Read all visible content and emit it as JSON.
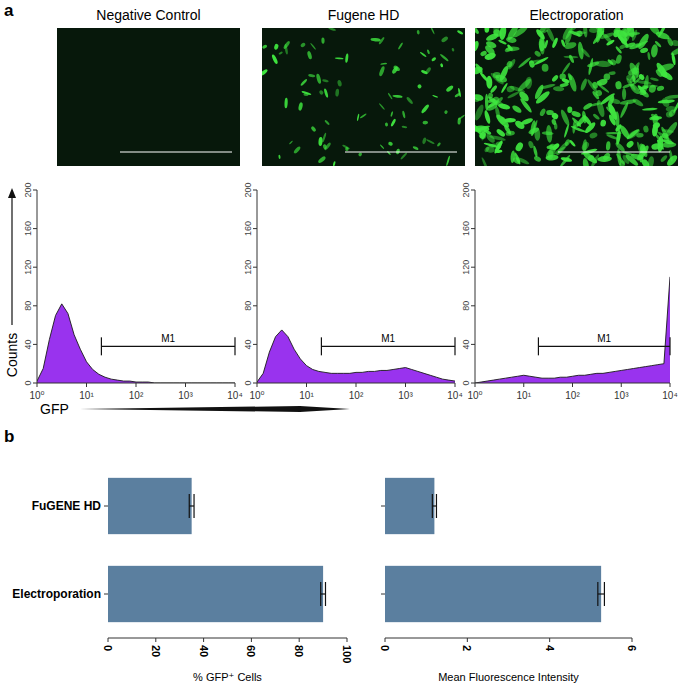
{
  "panel_labels": [
    "a",
    "b"
  ],
  "chart_data": [
    {
      "type": "area",
      "title": "Negative Control",
      "x_label": "GFP",
      "y_label": "Counts",
      "log": "x",
      "x": [
        1,
        1.334,
        1.778,
        2.371,
        3.162,
        4.217,
        5.623,
        7.499,
        10,
        13.34,
        17.78,
        23.71,
        31.62,
        42.17,
        56.23,
        74.99,
        100,
        133.4,
        177.8,
        237.1,
        316.2,
        421.7,
        562.3,
        749.9,
        1000,
        1334,
        1778,
        2371,
        3162,
        4217,
        5623,
        7499,
        10000
      ],
      "values": [
        2,
        15,
        45,
        70,
        82,
        72,
        50,
        35,
        22,
        14,
        9,
        6,
        4,
        3,
        2,
        2,
        1,
        1,
        1,
        0,
        0,
        0,
        0,
        0,
        0,
        0,
        0,
        0,
        0,
        0,
        0,
        0,
        0
      ],
      "color": "#9933ee",
      "xlim": [
        1,
        10000
      ],
      "xticks": [
        {
          "value": 1,
          "label": "10⁰"
        },
        {
          "value": 10,
          "label": "10¹"
        },
        {
          "value": 100,
          "label": "10²"
        },
        {
          "value": 1000,
          "label": "10³"
        },
        {
          "value": 10000,
          "label": "10⁴"
        }
      ],
      "ylim": [
        0,
        200
      ],
      "yticks": [
        0,
        40,
        80,
        120,
        160,
        200
      ],
      "gate": {
        "label": "M1",
        "range": [
          20,
          10000
        ],
        "level": 38
      }
    },
    {
      "type": "area",
      "title": "Fugene HD",
      "log": "x",
      "x": [
        1,
        1.334,
        1.778,
        2.371,
        3.162,
        4.217,
        5.623,
        7.499,
        10,
        13.34,
        17.78,
        23.71,
        31.62,
        42.17,
        56.23,
        74.99,
        100,
        133.4,
        177.8,
        237.1,
        316.2,
        421.7,
        562.3,
        749.9,
        1000,
        1334,
        1778,
        2371,
        3162,
        4217,
        5623,
        7499,
        10000
      ],
      "values": [
        1,
        10,
        32,
        48,
        55,
        48,
        35,
        25,
        18,
        14,
        12,
        11,
        10,
        10,
        10,
        10,
        11,
        11,
        12,
        12,
        13,
        13,
        14,
        15,
        16,
        14,
        12,
        10,
        8,
        6,
        4,
        3,
        2
      ],
      "color": "#9933ee",
      "xlim": [
        1,
        10000
      ],
      "xticks": [
        {
          "value": 1,
          "label": "10⁰"
        },
        {
          "value": 10,
          "label": "10¹"
        },
        {
          "value": 100,
          "label": "10²"
        },
        {
          "value": 1000,
          "label": "10³"
        },
        {
          "value": 10000,
          "label": "10⁴"
        }
      ],
      "ylim": [
        0,
        200
      ],
      "yticks": [
        0,
        40,
        80,
        120,
        160,
        200
      ],
      "gate": {
        "label": "M1",
        "range": [
          20,
          10000
        ],
        "level": 38
      }
    },
    {
      "type": "area",
      "title": "Electroporation",
      "log": "x",
      "x": [
        1,
        1.334,
        1.778,
        2.371,
        3.162,
        4.217,
        5.623,
        7.499,
        10,
        13.34,
        17.78,
        23.71,
        31.62,
        42.17,
        56.23,
        74.99,
        100,
        133.4,
        177.8,
        237.1,
        316.2,
        421.7,
        562.3,
        749.9,
        1000,
        1334,
        1778,
        2371,
        3162,
        4217,
        5623,
        7499,
        10000
      ],
      "values": [
        0,
        1,
        2,
        3,
        4,
        5,
        6,
        7,
        8,
        7,
        6,
        5,
        5,
        5,
        6,
        6,
        7,
        8,
        8,
        9,
        10,
        10,
        11,
        12,
        13,
        14,
        15,
        16,
        17,
        18,
        19,
        20,
        110
      ],
      "color": "#9933ee",
      "xlim": [
        1,
        10000
      ],
      "xticks": [
        {
          "value": 1,
          "label": "10⁰"
        },
        {
          "value": 10,
          "label": "10¹"
        },
        {
          "value": 100,
          "label": "10²"
        },
        {
          "value": 1000,
          "label": "10³"
        },
        {
          "value": 10000,
          "label": "10⁴"
        }
      ],
      "ylim": [
        0,
        200
      ],
      "yticks": [
        0,
        40,
        80,
        120,
        160,
        200
      ],
      "gate": {
        "label": "M1",
        "range": [
          20,
          10000
        ],
        "level": 38
      }
    },
    {
      "type": "bar",
      "orientation": "horizontal",
      "categories": [
        "FuGENE HD",
        "Electroporation"
      ],
      "values": [
        35,
        90
      ],
      "errors": [
        1,
        1
      ],
      "color": "#5b7f9f",
      "xlim": [
        0,
        100
      ],
      "xticks": [
        0,
        20,
        40,
        60,
        80,
        100
      ],
      "x_label": "% GFP⁺ Cells"
    },
    {
      "type": "bar",
      "orientation": "horizontal",
      "categories": [
        null,
        null
      ],
      "values": [
        1.2,
        5.25
      ],
      "errors": [
        0.05,
        0.08
      ],
      "color": "#5b7f9f",
      "xlim": [
        0,
        6
      ],
      "xticks": [
        0,
        2,
        4,
        6
      ],
      "x_label": "Mean Fluorescence Intensity"
    }
  ]
}
